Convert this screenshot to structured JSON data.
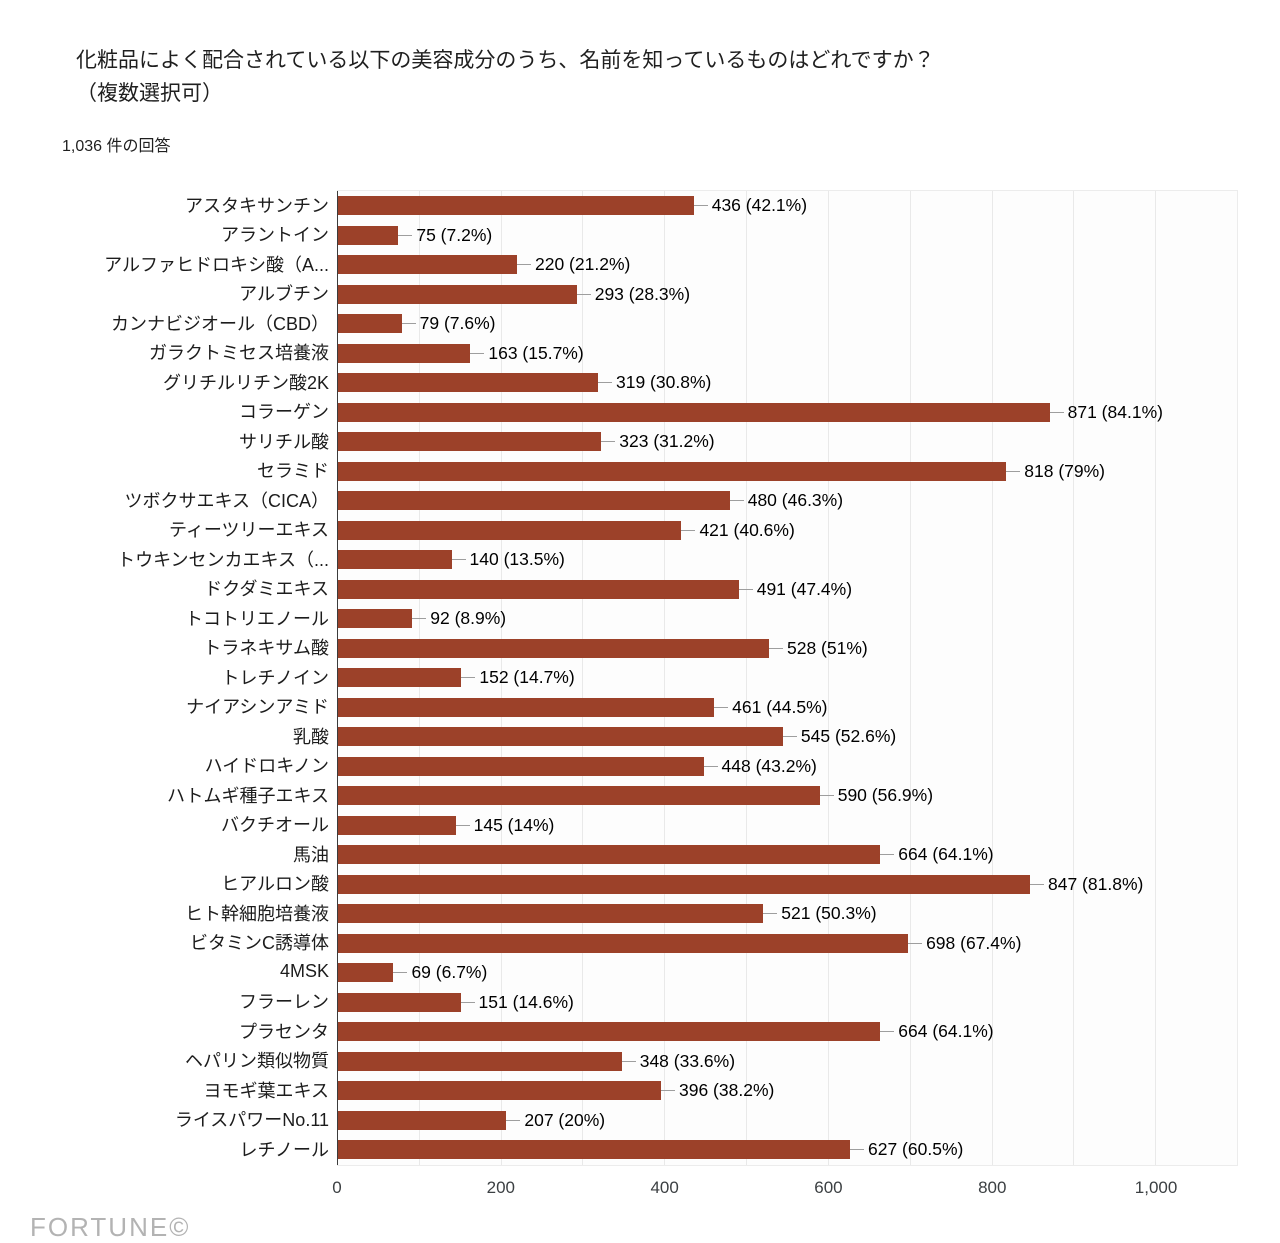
{
  "title": {
    "line1": "化粧品によく配合されている以下の美容成分のうち、名前を知っているものはどれですか？",
    "line2": "（複数選択可）"
  },
  "subtitle": "1,036 件の回答",
  "watermark": "FORTUNE©",
  "chart_data": {
    "type": "bar",
    "orientation": "horizontal",
    "bar_color": "#9C4129",
    "grid": true,
    "legend": "none",
    "xlim": [
      0,
      1100
    ],
    "grid_values": [
      100,
      200,
      300,
      400,
      500,
      600,
      700,
      800,
      900,
      1000
    ],
    "x_ticks": [
      {
        "value": 0,
        "label": "0"
      },
      {
        "value": 200,
        "label": "200"
      },
      {
        "value": 400,
        "label": "400"
      },
      {
        "value": 600,
        "label": "600"
      },
      {
        "value": 800,
        "label": "800"
      },
      {
        "value": 1000,
        "label": "1,000"
      }
    ],
    "categories": [
      "アスタキサンチン",
      "アラントイン",
      "アルファヒドロキシ酸（A...",
      "アルブチン",
      "カンナビジオール（CBD）",
      "ガラクトミセス培養液",
      "グリチルリチン酸2K",
      "コラーゲン",
      "サリチル酸",
      "セラミド",
      "ツボクサエキス（CICA）",
      "ティーツリーエキス",
      "トウキンセンカエキス（...",
      "ドクダミエキス",
      "トコトリエノール",
      "トラネキサム酸",
      "トレチノイン",
      "ナイアシンアミド",
      "乳酸",
      "ハイドロキノン",
      "ハトムギ種子エキス",
      "バクチオール",
      "馬油",
      "ヒアルロン酸",
      "ヒト幹細胞培養液",
      "ビタミンC誘導体",
      "4MSK",
      "フラーレン",
      "プラセンタ",
      "ヘパリン類似物質",
      "ヨモギ葉エキス",
      "ライスパワーNo.11",
      "レチノール"
    ],
    "values": [
      436,
      75,
      220,
      293,
      79,
      163,
      319,
      871,
      323,
      818,
      480,
      421,
      140,
      491,
      92,
      528,
      152,
      461,
      545,
      448,
      590,
      145,
      664,
      847,
      521,
      698,
      69,
      151,
      664,
      348,
      396,
      207,
      627
    ],
    "annotations": [
      "436 (42.1%)",
      "75 (7.2%)",
      "220 (21.2%)",
      "293 (28.3%)",
      "79 (7.6%)",
      "163 (15.7%)",
      "319 (30.8%)",
      "871 (84.1%)",
      "323 (31.2%)",
      "818 (79%)",
      "480 (46.3%)",
      "421 (40.6%)",
      "140 (13.5%)",
      "491 (47.4%)",
      "92 (8.9%)",
      "528 (51%)",
      "152 (14.7%)",
      "461 (44.5%)",
      "545 (52.6%)",
      "448 (43.2%)",
      "590 (56.9%)",
      "145 (14%)",
      "664 (64.1%)",
      "847 (81.8%)",
      "521 (50.3%)",
      "698 (67.4%)",
      "69 (6.7%)",
      "151 (14.6%)",
      "664 (64.1%)",
      "348 (33.6%)",
      "396 (38.2%)",
      "207 (20%)",
      "627 (60.5%)"
    ]
  }
}
